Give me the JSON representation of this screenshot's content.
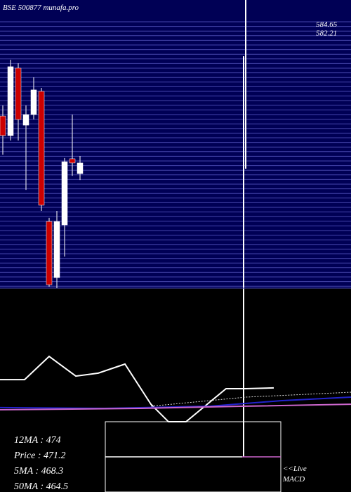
{
  "chart_data": [
    {
      "type": "candlestick",
      "title": "BSE 500877 munafa.pro",
      "ylim": [
        440,
        590
      ],
      "yticks": [
        {
          "value": 584.65,
          "label": "584.65"
        },
        {
          "value": 582.21,
          "label": "582.21"
        }
      ],
      "colors": {
        "up": "#ffffff",
        "down": "#cc0000"
      },
      "open": [
        534.2,
        523.5,
        560.4,
        529.2,
        535.0,
        547.7,
        476.5,
        445.8,
        474.6,
        510.8,
        502.7
      ],
      "high": [
        540.0,
        565.0,
        563.1,
        540.0,
        555.4,
        549.6,
        478.5,
        482.3,
        511.2,
        535.0,
        512.3
      ],
      "low": [
        513.1,
        520.8,
        520.8,
        493.8,
        532.3,
        482.3,
        440.8,
        440.0,
        457.3,
        501.5,
        499.2
      ],
      "close": [
        523.5,
        561.2,
        532.3,
        535.0,
        548.5,
        485.4,
        441.9,
        476.5,
        509.2,
        508.5,
        508.5
      ]
    },
    {
      "type": "line",
      "ylim": [
        0,
        100
      ],
      "x": [
        0,
        35,
        70,
        108,
        140,
        178,
        215,
        240,
        265,
        322,
        350,
        390
      ],
      "series": [
        {
          "color": "#ffffff",
          "x": [
            0,
            35,
            70,
            108,
            140,
            178,
            215,
            240,
            265,
            322,
            350,
            390
          ],
          "values": [
            57.1,
            57.1,
            68.9,
            58.9,
            60.4,
            65.0,
            44.6,
            35.7,
            35.7,
            52.5,
            52.5,
            52.9
          ]
        },
        {
          "color": "#2222cc",
          "x": [
            0,
            150,
            300,
            400,
            500
          ],
          "values": [
            42.9,
            42.5,
            43.6,
            46.4,
            48.2
          ]
        },
        {
          "color": "#cc66cc",
          "x": [
            0,
            200,
            350,
            500
          ],
          "values": [
            41.8,
            42.5,
            43.6,
            44.6
          ]
        },
        {
          "color": "#dddddd",
          "x": [
            215,
            350,
            500
          ],
          "values": [
            43.6,
            48.2,
            50.7
          ]
        }
      ],
      "info": [
        "12MA : 474",
        "Price   : 471.2",
        "5MA : 468.3",
        "50MA : 464.5"
      ],
      "macd_label": [
        "<<Live",
        "MACD"
      ]
    }
  ]
}
